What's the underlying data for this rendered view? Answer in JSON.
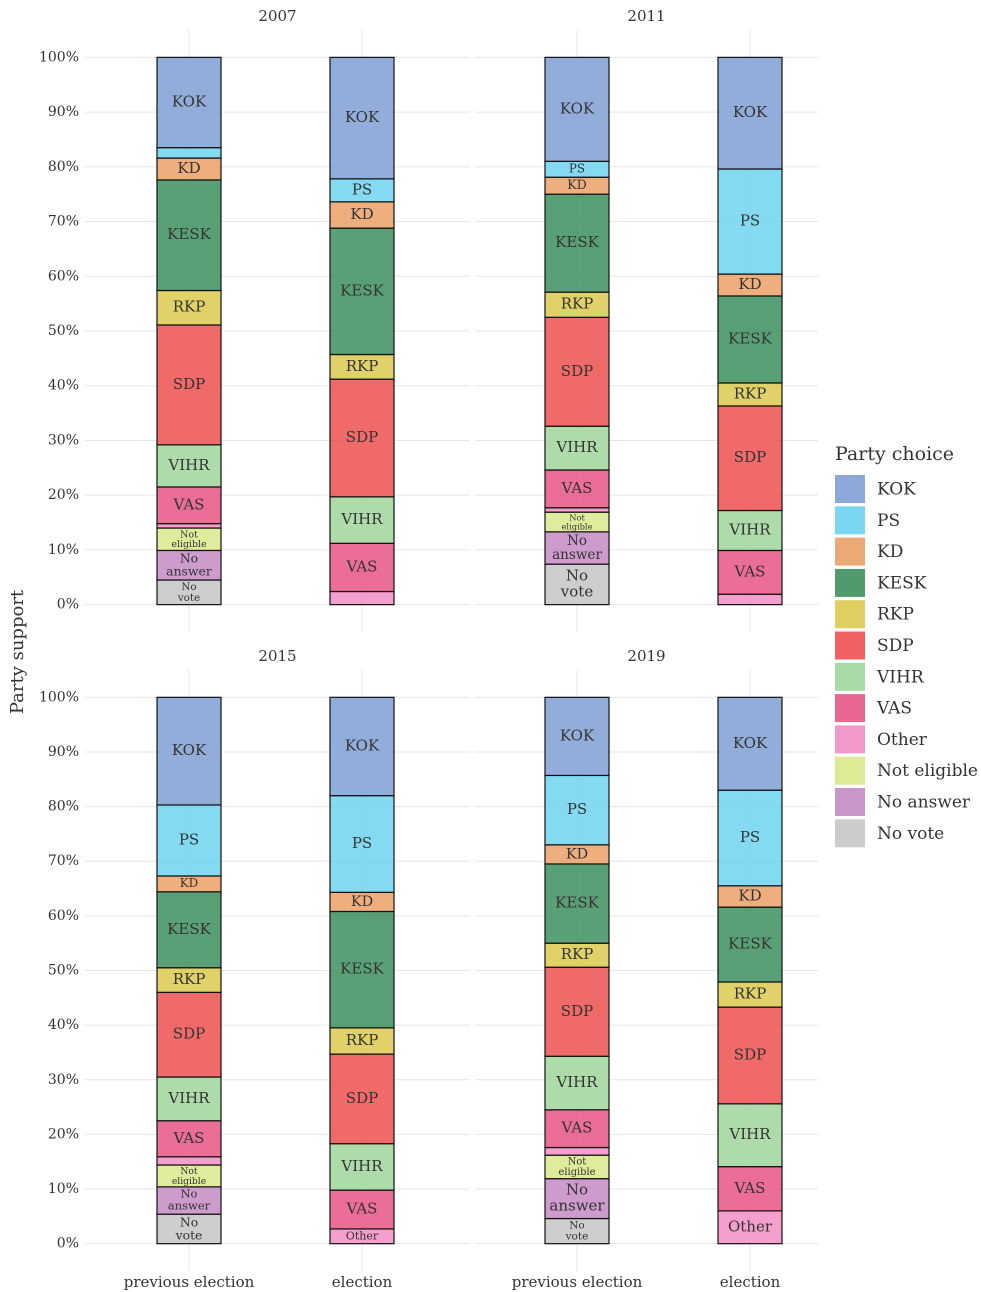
{
  "chart_data": {
    "type": "bar",
    "stacked": true,
    "ylabel": "Party support",
    "legend_title": "Party choice",
    "legend": "right",
    "grid": true,
    "categories": [
      "previous election",
      "election"
    ],
    "ylim": [
      -5,
      105
    ],
    "yticks": [
      {
        "value": 0,
        "label": "0%"
      },
      {
        "value": 10,
        "label": "10%"
      },
      {
        "value": 20,
        "label": "20%"
      },
      {
        "value": 30,
        "label": "30%"
      },
      {
        "value": 40,
        "label": "40%"
      },
      {
        "value": 50,
        "label": "50%"
      },
      {
        "value": 60,
        "label": "60%"
      },
      {
        "value": 70,
        "label": "70%"
      },
      {
        "value": 80,
        "label": "80%"
      },
      {
        "value": 90,
        "label": "90%"
      },
      {
        "value": 100,
        "label": "100%"
      }
    ],
    "series": [
      {
        "name": "KOK",
        "color": "#7f9fd4"
      },
      {
        "name": "PS",
        "color": "#6dd3ef"
      },
      {
        "name": "KD",
        "color": "#eba066"
      },
      {
        "name": "KESK",
        "color": "#3d8f5e"
      },
      {
        "name": "RKP",
        "color": "#dcc94f"
      },
      {
        "name": "SDP",
        "color": "#ef5050"
      },
      {
        "name": "VIHR",
        "color": "#9fd69b"
      },
      {
        "name": "VAS",
        "color": "#e65583"
      },
      {
        "name": "Other",
        "color": "#f28ec3"
      },
      {
        "name": "Not eligible",
        "color": "#dbe88a"
      },
      {
        "name": "No answer",
        "color": "#c48bc4"
      },
      {
        "name": "No vote",
        "color": "#c6c6c6"
      }
    ],
    "panels": [
      {
        "title": "2007",
        "series": [
          {
            "values": [
              16.5,
              22.2
            ],
            "value_labels": [
              "KOK",
              "KOK"
            ]
          },
          {
            "values": [
              1.9,
              4.2
            ],
            "value_labels": [
              null,
              "PS"
            ]
          },
          {
            "values": [
              4.0,
              4.8
            ],
            "value_labels": [
              "KD",
              "KD"
            ]
          },
          {
            "values": [
              20.2,
              23.1
            ],
            "value_labels": [
              "KESK",
              "KESK"
            ]
          },
          {
            "values": [
              6.3,
              4.5
            ],
            "value_labels": [
              "RKP",
              "RKP"
            ]
          },
          {
            "values": [
              21.9,
              21.5
            ],
            "value_labels": [
              "SDP",
              "SDP"
            ]
          },
          {
            "values": [
              7.7,
              8.5
            ],
            "value_labels": [
              "VIHR",
              "VIHR"
            ]
          },
          {
            "values": [
              6.7,
              8.8
            ],
            "value_labels": [
              "VAS",
              "VAS"
            ]
          },
          {
            "values": [
              0.8,
              2.4
            ],
            "value_labels": [
              null,
              null
            ]
          },
          {
            "values": [
              4.1,
              0
            ],
            "value_labels": [
              "Not eligible",
              null
            ]
          },
          {
            "values": [
              5.4,
              0
            ],
            "value_labels": [
              "No answer",
              null
            ]
          },
          {
            "values": [
              4.5,
              0
            ],
            "value_labels": [
              "No vote",
              null
            ]
          }
        ]
      },
      {
        "title": "2011",
        "series": [
          {
            "values": [
              19.0,
              20.4
            ],
            "value_labels": [
              "KOK",
              "KOK"
            ]
          },
          {
            "values": [
              2.9,
              19.2
            ],
            "value_labels": [
              "PS",
              "PS"
            ]
          },
          {
            "values": [
              3.1,
              4.0
            ],
            "value_labels": [
              "KD",
              "KD"
            ]
          },
          {
            "values": [
              17.9,
              15.9
            ],
            "value_labels": [
              "KESK",
              "KESK"
            ]
          },
          {
            "values": [
              4.6,
              4.2
            ],
            "value_labels": [
              "RKP",
              "RKP"
            ]
          },
          {
            "values": [
              19.9,
              19.1
            ],
            "value_labels": [
              "SDP",
              "SDP"
            ]
          },
          {
            "values": [
              8.0,
              7.3
            ],
            "value_labels": [
              "VIHR",
              "VIHR"
            ]
          },
          {
            "values": [
              6.9,
              8.0
            ],
            "value_labels": [
              "VAS",
              "VAS"
            ]
          },
          {
            "values": [
              0.8,
              1.9
            ],
            "value_labels": [
              null,
              null
            ]
          },
          {
            "values": [
              3.6,
              0
            ],
            "value_labels": [
              "Not eligible",
              null
            ]
          },
          {
            "values": [
              5.9,
              0
            ],
            "value_labels": [
              "No answer",
              null
            ]
          },
          {
            "values": [
              7.4,
              0
            ],
            "value_labels": [
              "No vote",
              null
            ]
          }
        ]
      },
      {
        "title": "2015",
        "series": [
          {
            "values": [
              19.7,
              18.0
            ],
            "value_labels": [
              "KOK",
              "KOK"
            ]
          },
          {
            "values": [
              13.0,
              17.7
            ],
            "value_labels": [
              "PS",
              "PS"
            ]
          },
          {
            "values": [
              2.9,
              3.5
            ],
            "value_labels": [
              "KD",
              "KD"
            ]
          },
          {
            "values": [
              13.9,
              21.3
            ],
            "value_labels": [
              "KESK",
              "KESK"
            ]
          },
          {
            "values": [
              4.5,
              4.8
            ],
            "value_labels": [
              "RKP",
              "RKP"
            ]
          },
          {
            "values": [
              15.5,
              16.4
            ],
            "value_labels": [
              "SDP",
              "SDP"
            ]
          },
          {
            "values": [
              8.0,
              8.5
            ],
            "value_labels": [
              "VIHR",
              "VIHR"
            ]
          },
          {
            "values": [
              6.6,
              7.1
            ],
            "value_labels": [
              "VAS",
              "VAS"
            ]
          },
          {
            "values": [
              1.5,
              2.7
            ],
            "value_labels": [
              null,
              "Other"
            ]
          },
          {
            "values": [
              4.0,
              0
            ],
            "value_labels": [
              "Not eligible",
              null
            ]
          },
          {
            "values": [
              5.0,
              0
            ],
            "value_labels": [
              "No answer",
              null
            ]
          },
          {
            "values": [
              5.4,
              0
            ],
            "value_labels": [
              "No vote",
              null
            ]
          }
        ]
      },
      {
        "title": "2019",
        "series": [
          {
            "values": [
              14.3,
              17.0
            ],
            "value_labels": [
              "KOK",
              "KOK"
            ]
          },
          {
            "values": [
              12.7,
              17.5
            ],
            "value_labels": [
              "PS",
              "PS"
            ]
          },
          {
            "values": [
              3.5,
              3.9
            ],
            "value_labels": [
              "KD",
              "KD"
            ]
          },
          {
            "values": [
              14.5,
              13.7
            ],
            "value_labels": [
              "KESK",
              "KESK"
            ]
          },
          {
            "values": [
              4.4,
              4.6
            ],
            "value_labels": [
              "RKP",
              "RKP"
            ]
          },
          {
            "values": [
              16.3,
              17.7
            ],
            "value_labels": [
              "SDP",
              "SDP"
            ]
          },
          {
            "values": [
              9.8,
              11.5
            ],
            "value_labels": [
              "VIHR",
              "VIHR"
            ]
          },
          {
            "values": [
              6.9,
              8.1
            ],
            "value_labels": [
              "VAS",
              "VAS"
            ]
          },
          {
            "values": [
              1.4,
              6.0
            ],
            "value_labels": [
              null,
              "Other"
            ]
          },
          {
            "values": [
              4.3,
              0
            ],
            "value_labels": [
              "Not eligible",
              null
            ]
          },
          {
            "values": [
              7.3,
              0
            ],
            "value_labels": [
              "No answer",
              null
            ]
          },
          {
            "values": [
              4.6,
              0
            ],
            "value_labels": [
              "No vote",
              null
            ]
          }
        ]
      }
    ]
  }
}
